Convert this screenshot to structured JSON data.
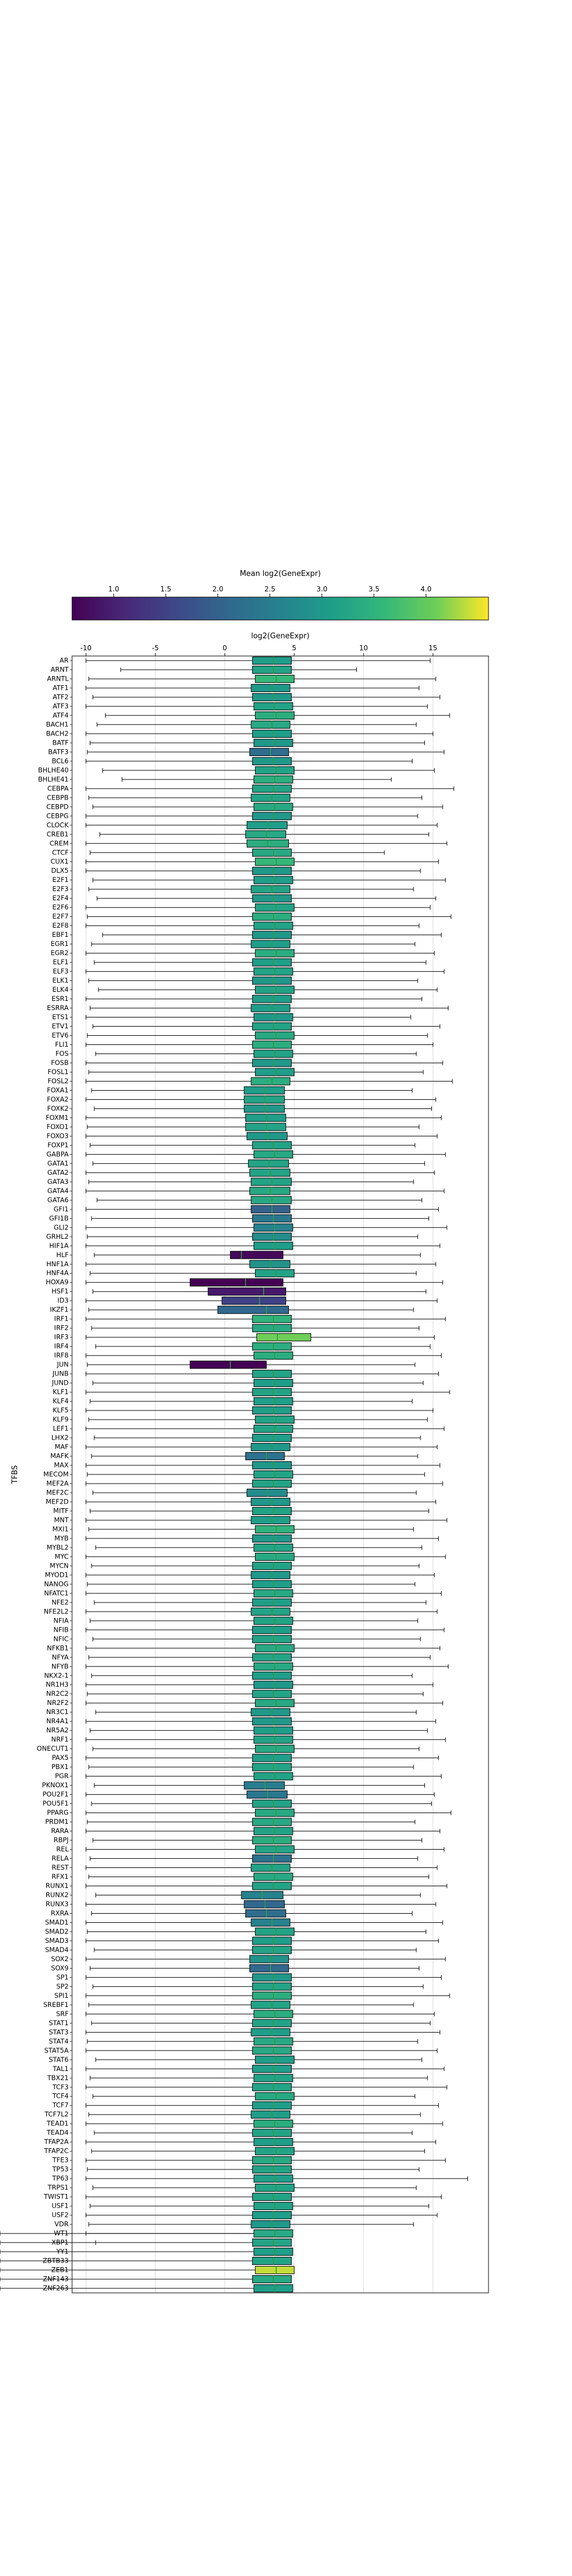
{
  "chart_data": {
    "type": "boxplot",
    "title": "",
    "xlabel": "log2(GeneExpr)",
    "ylabel": "TFBS",
    "xlim": [
      -11,
      19
    ],
    "xticks": [
      -10,
      -5,
      0,
      5,
      10,
      15
    ],
    "grid": "x",
    "colorbar": {
      "label": "Mean log2(GeneExpr)",
      "colormap": "viridis",
      "range": [
        0.6,
        4.6
      ],
      "ticks": [
        "1.0",
        "1.5",
        "2.0",
        "2.5",
        "3.0",
        "3.5",
        "4.0"
      ],
      "orientation": "horizontal",
      "placement": "top"
    },
    "colors": {
      "median": "#2a9d3f",
      "box_edge": "#000000",
      "whisker": "#000000",
      "grid": "#d9d9d9"
    },
    "categories": [
      "AR",
      "ARNT",
      "ARNTL",
      "ATF1",
      "ATF2",
      "ATF3",
      "ATF4",
      "BACH1",
      "BACH2",
      "BATF",
      "BATF3",
      "BCL6",
      "BHLHE40",
      "BHLHE41",
      "CEBPA",
      "CEBPB",
      "CEBPD",
      "CEBPG",
      "CLOCK",
      "CREB1",
      "CREM",
      "CTCF",
      "CUX1",
      "DLX5",
      "E2F1",
      "E2F3",
      "E2F4",
      "E2F6",
      "E2F7",
      "E2F8",
      "EBF1",
      "EGR1",
      "EGR2",
      "ELF1",
      "ELF3",
      "ELK1",
      "ELK4",
      "ESR1",
      "ESRRA",
      "ETS1",
      "ETV1",
      "ETV6",
      "FLI1",
      "FOS",
      "FOSB",
      "FOSL1",
      "FOSL2",
      "FOXA1",
      "FOXA2",
      "FOXK2",
      "FOXM1",
      "FOXO1",
      "FOXO3",
      "FOXP1",
      "GABPA",
      "GATA1",
      "GATA2",
      "GATA3",
      "GATA4",
      "GATA6",
      "GFI1",
      "GFI1B",
      "GLI2",
      "GRHL2",
      "HIF1A",
      "HLF",
      "HNF1A",
      "HNF4A",
      "HOXA9",
      "HSF1",
      "ID3",
      "IKZF1",
      "IRF1",
      "IRF2",
      "IRF3",
      "IRF4",
      "IRF8",
      "JUN",
      "JUNB",
      "JUND",
      "KLF1",
      "KLF4",
      "KLF5",
      "KLF9",
      "LEF1",
      "LHX2",
      "MAF",
      "MAFK",
      "MAX",
      "MECOM",
      "MEF2A",
      "MEF2C",
      "MEF2D",
      "MITF",
      "MNT",
      "MXI1",
      "MYB",
      "MYBL2",
      "MYC",
      "MYCN",
      "MYOD1",
      "NANOG",
      "NFATC1",
      "NFE2",
      "NFE2L2",
      "NFIA",
      "NFIB",
      "NFIC",
      "NFKB1",
      "NFYA",
      "NFYB",
      "NKX2-1",
      "NR1H3",
      "NR2C2",
      "NR2F2",
      "NR3C1",
      "NR4A1",
      "NR5A2",
      "NRF1",
      "ONECUT1",
      "PAX5",
      "PBX1",
      "PGR",
      "PKNOX1",
      "POU2F1",
      "POU5F1",
      "PPARG",
      "PRDM1",
      "RARA",
      "RBPJ",
      "REL",
      "RELA",
      "REST",
      "RFX1",
      "RUNX1",
      "RUNX2",
      "RUNX3",
      "RXRA",
      "SMAD1",
      "SMAD2",
      "SMAD3",
      "SMAD4",
      "SOX2",
      "SOX9",
      "SP1",
      "SP2",
      "SPI1",
      "SREBF1",
      "SRF",
      "STAT1",
      "STAT3",
      "STAT4",
      "STAT5A",
      "STAT6",
      "TAL1",
      "TBX21",
      "TCF3",
      "TCF4",
      "TCF7",
      "TCF7L2",
      "TEAD1",
      "TEAD4",
      "TFAP2A",
      "TFAP2C",
      "TFE3",
      "TP53",
      "TP63",
      "TRPS1",
      "TWIST1",
      "USF1",
      "USF2",
      "VDR",
      "WT1",
      "XBP1",
      "YY1",
      "ZBTB33",
      "ZEB1",
      "ZNF143",
      "ZNF263"
    ],
    "boxes": {
      "q1": [
        2.0,
        2.0,
        2.2,
        1.9,
        2.0,
        2.1,
        2.2,
        1.9,
        2.0,
        2.1,
        1.8,
        2.0,
        2.2,
        2.1,
        2.0,
        1.9,
        2.1,
        2.0,
        1.6,
        1.5,
        1.6,
        2.0,
        2.2,
        2.0,
        2.1,
        1.9,
        2.0,
        2.2,
        2.0,
        2.1,
        2.0,
        1.9,
        2.2,
        2.0,
        2.1,
        2.0,
        2.2,
        2.0,
        1.9,
        2.1,
        2.0,
        2.2,
        2.0,
        2.1,
        2.0,
        2.2,
        1.9,
        1.4,
        1.4,
        1.4,
        1.5,
        1.5,
        1.6,
        2.0,
        2.1,
        1.7,
        1.8,
        1.9,
        1.8,
        1.9,
        1.9,
        2.0,
        2.1,
        2.0,
        2.1,
        0.4,
        1.8,
        2.2,
        -2.5,
        -1.2,
        -0.2,
        -0.5,
        2.0,
        2.0,
        2.3,
        2.0,
        2.1,
        -2.5,
        2.0,
        2.1,
        2.0,
        2.1,
        2.0,
        2.2,
        2.1,
        2.0,
        1.9,
        1.5,
        2.0,
        2.1,
        2.0,
        1.6,
        1.9,
        2.0,
        1.9,
        2.2,
        2.0,
        2.1,
        2.2,
        2.0,
        1.9,
        2.0,
        2.1,
        2.0,
        1.9,
        2.1,
        2.0,
        2.0,
        2.2,
        2.0,
        2.1,
        2.0,
        2.1,
        2.0,
        2.2,
        1.9,
        2.0,
        2.1,
        2.1,
        2.2,
        2.0,
        2.0,
        2.1,
        1.4,
        1.6,
        2.0,
        2.2,
        2.0,
        2.1,
        2.0,
        2.2,
        2.0,
        1.9,
        2.1,
        2.0,
        1.2,
        1.4,
        1.5,
        1.9,
        2.2,
        2.0,
        2.0,
        1.8,
        1.8,
        2.0,
        2.0,
        2.0,
        1.9,
        2.1,
        2.0,
        1.9,
        2.1,
        2.0,
        2.2,
        2.0,
        2.1,
        2.0,
        2.2,
        2.0,
        1.9,
        2.1,
        2.0,
        2.1,
        2.2,
        2.0,
        2.0,
        2.1,
        2.2,
        2.0,
        2.1,
        2.0,
        1.9,
        2.1,
        2.0,
        2.1,
        2.0,
        2.2,
        2.0,
        2.1,
        2.0
      ],
      "median": [
        3.5,
        3.5,
        3.7,
        3.4,
        3.5,
        3.6,
        3.7,
        3.4,
        3.5,
        3.6,
        3.3,
        3.5,
        3.7,
        3.6,
        3.5,
        3.4,
        3.6,
        3.5,
        3.1,
        3.0,
        3.1,
        3.5,
        3.7,
        3.5,
        3.6,
        3.4,
        3.5,
        3.7,
        3.5,
        3.6,
        3.5,
        3.4,
        3.7,
        3.5,
        3.6,
        3.5,
        3.7,
        3.5,
        3.4,
        3.6,
        3.5,
        3.7,
        3.5,
        3.6,
        3.5,
        3.7,
        3.4,
        2.9,
        2.9,
        2.9,
        3.0,
        3.0,
        3.1,
        3.5,
        3.6,
        3.2,
        3.3,
        3.4,
        3.3,
        3.4,
        3.4,
        3.5,
        3.6,
        3.5,
        3.6,
        1.2,
        3.3,
        3.7,
        1.5,
        2.8,
        2.5,
        3.0,
        3.5,
        3.5,
        3.8,
        3.5,
        3.6,
        0.4,
        3.5,
        3.6,
        3.5,
        3.6,
        3.5,
        3.7,
        3.6,
        3.5,
        3.4,
        3.0,
        3.5,
        3.6,
        3.5,
        3.1,
        3.4,
        3.5,
        3.4,
        3.7,
        3.5,
        3.6,
        3.7,
        3.5,
        3.4,
        3.5,
        3.6,
        3.5,
        3.4,
        3.6,
        3.5,
        3.5,
        3.7,
        3.5,
        3.6,
        3.5,
        3.6,
        3.5,
        3.7,
        3.4,
        3.5,
        3.6,
        3.6,
        3.7,
        3.5,
        3.5,
        3.6,
        2.9,
        3.1,
        3.5,
        3.7,
        3.5,
        3.6,
        3.5,
        3.7,
        3.5,
        3.4,
        3.6,
        3.5,
        2.7,
        2.9,
        3.0,
        3.4,
        3.7,
        3.5,
        3.5,
        3.3,
        3.3,
        3.5,
        3.5,
        3.5,
        3.4,
        3.6,
        3.5,
        3.4,
        3.6,
        3.5,
        3.7,
        3.5,
        3.6,
        3.5,
        3.7,
        3.5,
        3.4,
        3.6,
        3.5,
        3.6,
        3.7,
        3.5,
        3.5,
        3.6,
        3.7,
        3.5,
        3.6,
        3.5,
        3.4,
        3.6,
        3.5,
        3.6,
        3.5,
        3.7,
        3.5,
        3.6,
        3.5
      ],
      "q3": [
        4.8,
        4.8,
        5.0,
        4.7,
        4.8,
        4.9,
        5.0,
        4.7,
        4.8,
        4.9,
        4.6,
        4.8,
        5.0,
        4.9,
        4.8,
        4.7,
        4.9,
        4.8,
        4.5,
        4.4,
        4.6,
        4.8,
        5.0,
        4.8,
        4.9,
        4.7,
        4.8,
        5.0,
        4.8,
        4.9,
        4.8,
        4.7,
        5.0,
        4.8,
        4.9,
        4.8,
        5.0,
        4.8,
        4.7,
        4.9,
        4.8,
        5.0,
        4.8,
        4.9,
        4.8,
        5.0,
        4.7,
        4.3,
        4.3,
        4.3,
        4.4,
        4.4,
        4.5,
        4.8,
        4.9,
        4.6,
        4.7,
        4.8,
        4.7,
        4.8,
        4.7,
        4.8,
        4.9,
        4.8,
        4.9,
        4.2,
        4.7,
        5.0,
        4.2,
        4.4,
        4.4,
        4.6,
        4.8,
        4.8,
        6.2,
        4.8,
        4.9,
        3.0,
        4.8,
        4.9,
        4.8,
        4.9,
        4.8,
        5.0,
        4.9,
        4.8,
        4.7,
        4.3,
        4.8,
        4.9,
        4.8,
        4.5,
        4.7,
        4.8,
        4.7,
        5.0,
        4.8,
        4.9,
        5.0,
        4.8,
        4.7,
        4.8,
        4.9,
        4.8,
        4.7,
        4.9,
        4.8,
        4.8,
        5.0,
        4.8,
        4.9,
        4.8,
        4.9,
        4.8,
        5.0,
        4.7,
        4.8,
        4.9,
        4.9,
        5.0,
        4.8,
        4.8,
        4.9,
        4.3,
        4.5,
        4.8,
        5.0,
        4.8,
        4.9,
        4.8,
        5.0,
        4.8,
        4.7,
        4.9,
        4.8,
        4.2,
        4.3,
        4.4,
        4.7,
        5.0,
        4.8,
        4.8,
        4.6,
        4.6,
        4.8,
        4.8,
        4.8,
        4.7,
        4.9,
        4.8,
        4.7,
        4.9,
        4.8,
        5.0,
        4.8,
        4.9,
        4.8,
        5.0,
        4.8,
        4.7,
        4.9,
        4.8,
        4.9,
        5.0,
        4.8,
        4.8,
        4.9,
        5.0,
        4.8,
        4.9,
        4.8,
        4.7,
        4.9,
        4.8,
        4.9,
        4.8,
        5.0,
        4.8,
        4.9,
        4.8
      ],
      "whislo": [
        -10.0,
        -7.5,
        -9.8,
        -10.0,
        -9.5,
        -10.0,
        -8.6,
        -9.2,
        -10.0,
        -9.7,
        -9.9,
        -10.0,
        -8.8,
        -7.4,
        -10.0,
        -9.8,
        -9.5,
        -10.0,
        -10.0,
        -9.0,
        -10.0,
        -9.7,
        -10.0,
        -10.0,
        -9.5,
        -9.8,
        -9.2,
        -10.0,
        -9.9,
        -10.0,
        -8.8,
        -9.6,
        -10.0,
        -9.4,
        -10.0,
        -9.8,
        -9.1,
        -10.0,
        -9.7,
        -10.0,
        -9.5,
        -9.9,
        -10.0,
        -9.3,
        -10.0,
        -9.8,
        -10.0,
        -9.6,
        -10.0,
        -9.4,
        -10.0,
        -9.9,
        -10.0,
        -9.7,
        -10.0,
        -9.5,
        -10.0,
        -9.8,
        -10.0,
        -9.2,
        -10.0,
        -9.6,
        -10.0,
        -9.9,
        -10.0,
        -9.4,
        -10.0,
        -9.7,
        -10.0,
        -9.5,
        -10.0,
        -9.8,
        -10.0,
        -9.6,
        -10.0,
        -9.3,
        -10.0,
        -9.9,
        -10.0,
        -9.5,
        -10.0,
        -9.7,
        -10.0,
        -9.8,
        -10.0,
        -9.4,
        -10.0,
        -9.6,
        -10.0,
        -9.9,
        -10.0,
        -9.5,
        -10.0,
        -9.7,
        -10.0,
        -9.8,
        -10.0,
        -9.3,
        -10.0,
        -9.6,
        -10.0,
        -9.9,
        -10.0,
        -9.4,
        -10.0,
        -9.7,
        -10.0,
        -9.5,
        -10.0,
        -9.8,
        -10.0,
        -9.6,
        -10.0,
        -9.9,
        -10.0,
        -9.3,
        -10.0,
        -9.7,
        -10.0,
        -9.5,
        -10.0,
        -9.8,
        -10.0,
        -9.4,
        -10.0,
        -9.6,
        -10.0,
        -9.9,
        -10.0,
        -9.5,
        -10.0,
        -9.7,
        -10.0,
        -9.8,
        -10.0,
        -9.3,
        -10.0,
        -9.6,
        -10.0,
        -9.9,
        -10.0,
        -9.4,
        -10.0,
        -9.7,
        -10.0,
        -9.5,
        -10.0,
        -9.8,
        -10.0,
        -9.6,
        -10.0,
        -9.9,
        -10.0,
        -9.3,
        -10.0,
        -9.7,
        -10.0,
        -9.5,
        -10.0,
        -9.8,
        -10.0,
        -9.4,
        -10.0,
        -9.6,
        -10.0,
        -9.9,
        -10.0,
        -9.5,
        -10.0,
        -9.7,
        -10.0,
        -9.8,
        -10.0,
        -9.3
      ],
      "whishi": [
        14.8,
        9.5,
        15.2,
        14.0,
        15.5,
        14.6,
        16.2,
        13.8,
        15.0,
        14.4,
        15.8,
        13.5,
        15.1,
        12.0,
        16.5,
        14.2,
        15.7,
        13.9,
        15.3,
        14.7,
        16.0,
        11.5,
        15.4,
        14.1,
        15.9,
        13.6,
        15.2,
        14.8,
        16.3,
        14.0,
        15.6,
        13.7,
        15.1,
        14.5,
        15.8,
        13.9,
        15.3,
        14.2,
        16.1,
        13.4,
        15.5,
        14.6,
        15.0,
        13.8,
        15.7,
        14.3,
        16.4,
        13.5,
        15.2,
        14.9,
        15.6,
        14.0,
        15.3,
        13.7,
        15.9,
        14.4,
        15.1,
        13.6,
        15.8,
        14.2,
        15.4,
        14.7,
        16.0,
        13.9,
        15.5,
        14.1,
        15.2,
        13.8,
        15.7,
        14.5,
        15.3,
        13.6,
        15.9,
        14.0,
        15.1,
        14.8,
        15.6,
        13.7,
        15.4,
        14.3,
        16.2,
        13.5,
        15.0,
        14.6,
        15.8,
        14.1,
        15.3,
        13.9,
        15.5,
        14.4,
        15.7,
        13.8,
        15.2,
        14.7,
        16.0,
        13.6,
        15.4,
        14.2,
        15.9,
        14.0,
        15.1,
        13.7,
        15.6,
        14.5,
        15.3,
        13.9,
        15.8,
        14.1,
        15.5,
        14.8,
        16.1,
        13.5,
        15.0,
        14.3,
        15.7,
        13.8,
        15.2,
        14.6,
        15.9,
        14.0,
        15.4,
        13.6,
        15.6,
        14.4,
        15.1,
        14.9,
        16.3,
        13.7,
        15.5,
        14.2,
        15.8,
        13.9,
        15.3,
        14.7,
        16.0,
        14.1,
        15.2,
        13.5,
        15.7,
        14.5,
        15.4,
        13.8,
        15.9,
        14.0,
        15.6,
        14.3,
        16.2,
        13.6,
        15.1,
        14.8,
        15.5,
        13.9,
        15.3,
        14.2,
        15.8,
        14.6,
        16.0,
        13.7,
        15.4,
        14.1,
        15.7,
        13.5,
        15.2,
        14.4,
        15.9,
        14.0,
        17.5,
        13.8,
        15.6,
        14.7,
        15.3,
        13.6
      ],
      "mean": [
        3.1,
        3.2,
        3.6,
        3.0,
        3.0,
        3.2,
        3.4,
        3.3,
        3.1,
        3.0,
        2.2,
        3.0,
        3.2,
        3.4,
        3.2,
        3.2,
        3.3,
        3.0,
        3.1,
        3.3,
        3.4,
        3.3,
        3.6,
        3.0,
        3.1,
        3.2,
        3.0,
        3.2,
        3.4,
        3.2,
        3.0,
        3.1,
        3.4,
        3.1,
        3.2,
        3.0,
        3.2,
        3.1,
        3.1,
        3.0,
        3.2,
        3.3,
        3.4,
        3.2,
        3.0,
        3.1,
        3.4,
        3.1,
        3.2,
        3.0,
        3.1,
        3.2,
        3.0,
        3.2,
        3.3,
        3.2,
        3.2,
        3.2,
        3.3,
        3.3,
        2.0,
        2.4,
        2.6,
        2.8,
        3.1,
        0.7,
        2.9,
        3.2,
        0.6,
        0.9,
        1.5,
        2.1,
        3.5,
        3.3,
        4.1,
        3.4,
        3.4,
        0.6,
        3.2,
        3.1,
        3.2,
        3.1,
        3.1,
        3.2,
        3.2,
        3.1,
        3.0,
        2.3,
        3.0,
        3.2,
        3.2,
        2.8,
        3.0,
        3.2,
        3.1,
        3.5,
        3.0,
        3.2,
        3.3,
        3.2,
        3.0,
        3.1,
        3.3,
        3.1,
        3.2,
        3.2,
        3.1,
        3.2,
        3.3,
        3.2,
        3.3,
        3.1,
        3.0,
        3.2,
        3.3,
        3.0,
        3.0,
        3.1,
        3.2,
        3.3,
        3.1,
        3.2,
        3.2,
        2.5,
        2.4,
        3.2,
        3.3,
        3.3,
        3.2,
        3.4,
        3.2,
        2.3,
        3.2,
        3.3,
        3.2,
        2.6,
        2.1,
        2.2,
        2.6,
        3.2,
        3.1,
        3.2,
        2.9,
        2.1,
        3.0,
        3.2,
        3.4,
        3.2,
        3.4,
        3.2,
        3.1,
        3.3,
        3.3,
        3.1,
        3.1,
        3.2,
        3.2,
        3.3,
        3.1,
        3.1,
        3.4,
        3.2,
        3.1,
        3.2,
        3.3,
        3.2,
        3.1,
        3.2,
        3.2,
        3.2,
        3.1,
        3.0,
        3.3,
        3.2,
        3.1,
        3.2,
        4.4,
        3.3,
        3.1,
        2.5
      ]
    }
  }
}
